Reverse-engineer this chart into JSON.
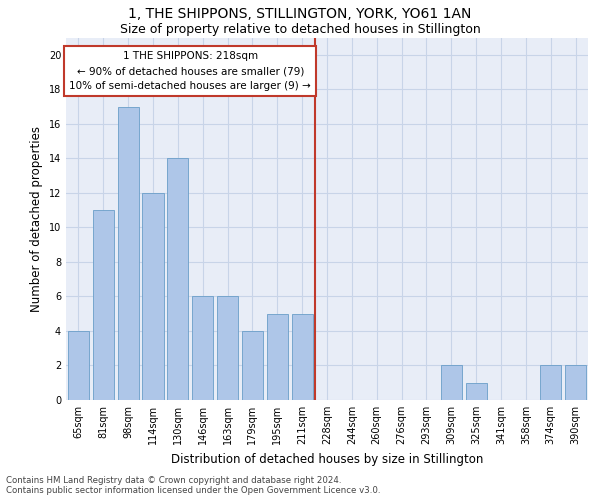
{
  "title": "1, THE SHIPPONS, STILLINGTON, YORK, YO61 1AN",
  "subtitle": "Size of property relative to detached houses in Stillington",
  "xlabel": "Distribution of detached houses by size in Stillington",
  "ylabel": "Number of detached properties",
  "bar_labels": [
    "65sqm",
    "81sqm",
    "98sqm",
    "114sqm",
    "130sqm",
    "146sqm",
    "163sqm",
    "179sqm",
    "195sqm",
    "211sqm",
    "228sqm",
    "244sqm",
    "260sqm",
    "276sqm",
    "293sqm",
    "309sqm",
    "325sqm",
    "341sqm",
    "358sqm",
    "374sqm",
    "390sqm"
  ],
  "bar_values": [
    4,
    11,
    17,
    12,
    14,
    6,
    6,
    4,
    5,
    5,
    0,
    0,
    0,
    0,
    0,
    2,
    1,
    0,
    0,
    2,
    2
  ],
  "bar_color": "#aec6e8",
  "bar_edge_color": "#6a9ec8",
  "vline_index": 10,
  "vline_color": "#c0392b",
  "annotation_text": "1 THE SHIPPONS: 218sqm\n← 90% of detached houses are smaller (79)\n10% of semi-detached houses are larger (9) →",
  "annotation_box_color": "#c0392b",
  "ylim": [
    0,
    21
  ],
  "yticks": [
    0,
    2,
    4,
    6,
    8,
    10,
    12,
    14,
    16,
    18,
    20
  ],
  "grid_color": "#c8d4e8",
  "background_color": "#e8edf7",
  "footer_line1": "Contains HM Land Registry data © Crown copyright and database right 2024.",
  "footer_line2": "Contains public sector information licensed under the Open Government Licence v3.0.",
  "title_fontsize": 10,
  "subtitle_fontsize": 9,
  "axis_label_fontsize": 8.5,
  "tick_fontsize": 7,
  "annot_fontsize": 7.5
}
